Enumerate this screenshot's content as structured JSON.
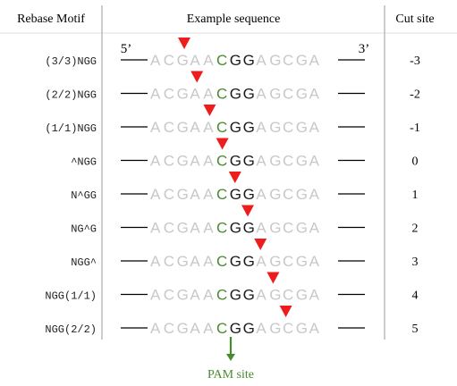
{
  "headers": {
    "motif": "Rebase Motif",
    "sequence": "Example sequence",
    "cut": "Cut site"
  },
  "end_labels": {
    "five_prime": "5’",
    "three_prime": "3’"
  },
  "sequence": {
    "segments": [
      {
        "text": "ACGAA",
        "color": "#c8c8c8"
      },
      {
        "text": "C",
        "color": "#4a8a2e"
      },
      {
        "text": "GG",
        "color": "#1a1a1a"
      },
      {
        "text": "AGCGA",
        "color": "#c8c8c8"
      }
    ]
  },
  "rows": [
    {
      "motif": "(3/3)NGG",
      "cut": "-3"
    },
    {
      "motif": "(2/2)NGG",
      "cut": "-2"
    },
    {
      "motif": "(1/1)NGG",
      "cut": "-1"
    },
    {
      "motif": "^NGG",
      "cut": "0"
    },
    {
      "motif": "N^GG",
      "cut": "1"
    },
    {
      "motif": "NG^G",
      "cut": "2"
    },
    {
      "motif": "NGG^",
      "cut": "3"
    },
    {
      "motif": "NGG(1/1)",
      "cut": "4"
    },
    {
      "motif": "NGG(2/2)",
      "cut": "5"
    }
  ],
  "pam_label": "PAM site",
  "colors": {
    "arrow": "#ee1c1c",
    "pam": "#4a8a2e",
    "line": "#000000",
    "divider": "#999999"
  }
}
